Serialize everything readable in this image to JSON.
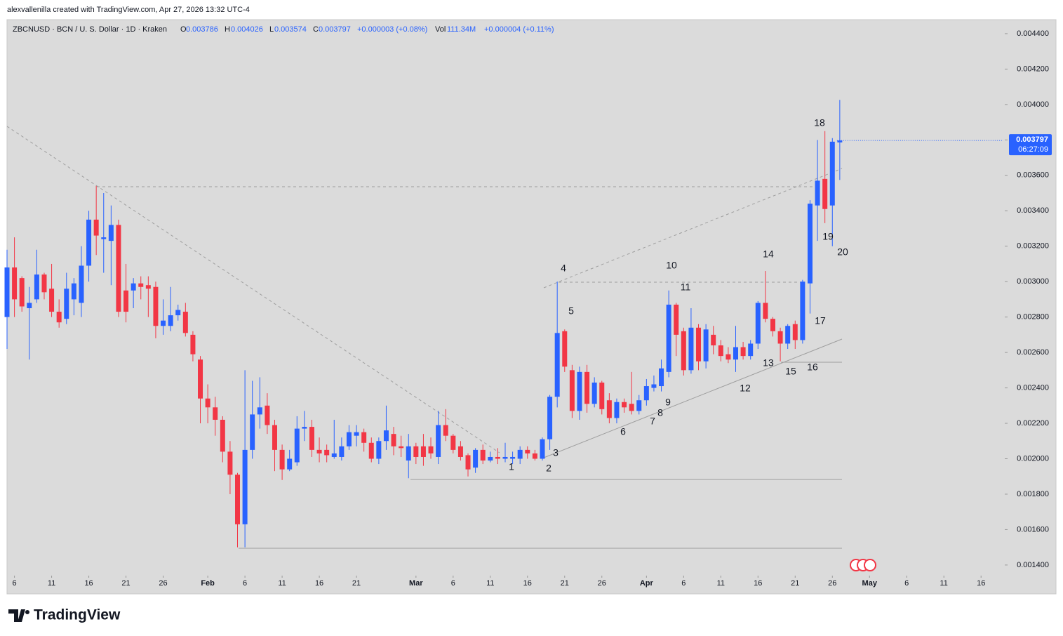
{
  "header": {
    "attribution": "alexvallenilla created with TradingView.com, Apr 27, 2026 13:32 UTC-4"
  },
  "legend": {
    "symbol": "ZBCNUSD · BCN / U. S. Dollar · 1D · Kraken",
    "open_key": "O",
    "high_key": "H",
    "low_key": "L",
    "close_key": "C",
    "change": "+0.000003 (+0.08%)",
    "volume_key": "Vol",
    "volume": "111.34M",
    "volume_change": "+0.000004 (+0.11%)"
  },
  "price_tag": {
    "countdown": "06:27:09"
  },
  "footer": {
    "brand": "TradingView"
  },
  "chart_data": {
    "type": "candlestick",
    "up_color": "#2962ff",
    "down_color": "#f23645",
    "x": [
      "2026-01-05",
      "2026-01-06",
      "2026-01-07",
      "2026-01-08",
      "2026-01-09",
      "2026-01-10",
      "2026-01-11",
      "2026-01-12",
      "2026-01-13",
      "2026-01-14",
      "2026-01-15",
      "2026-01-16",
      "2026-01-17",
      "2026-01-18",
      "2026-01-19",
      "2026-01-20",
      "2026-01-21",
      "2026-01-22",
      "2026-01-23",
      "2026-01-24",
      "2026-01-25",
      "2026-01-26",
      "2026-01-27",
      "2026-01-28",
      "2026-01-29",
      "2026-01-30",
      "2026-01-31",
      "2026-02-01",
      "2026-02-02",
      "2026-02-03",
      "2026-02-04",
      "2026-02-05",
      "2026-02-06",
      "2026-02-07",
      "2026-02-08",
      "2026-02-09",
      "2026-02-10",
      "2026-02-11",
      "2026-02-12",
      "2026-02-13",
      "2026-02-14",
      "2026-02-15",
      "2026-02-16",
      "2026-02-17",
      "2026-02-18",
      "2026-02-19",
      "2026-02-20",
      "2026-02-21",
      "2026-02-22",
      "2026-02-23",
      "2026-02-24",
      "2026-02-25",
      "2026-02-26",
      "2026-02-27",
      "2026-02-28",
      "2026-03-01",
      "2026-03-02",
      "2026-03-03",
      "2026-03-04",
      "2026-03-05",
      "2026-03-06",
      "2026-03-07",
      "2026-03-08",
      "2026-03-09",
      "2026-03-10",
      "2026-03-11",
      "2026-03-12",
      "2026-03-13",
      "2026-03-14",
      "2026-03-15",
      "2026-03-16",
      "2026-03-17",
      "2026-03-18",
      "2026-03-19",
      "2026-03-20",
      "2026-03-21",
      "2026-03-22",
      "2026-03-23",
      "2026-03-24",
      "2026-03-25",
      "2026-03-26",
      "2026-03-27",
      "2026-03-28",
      "2026-03-29",
      "2026-03-30",
      "2026-03-31",
      "2026-04-01",
      "2026-04-02",
      "2026-04-03",
      "2026-04-04",
      "2026-04-05",
      "2026-04-06",
      "2026-04-07",
      "2026-04-08",
      "2026-04-09",
      "2026-04-10",
      "2026-04-11",
      "2026-04-12",
      "2026-04-13",
      "2026-04-14",
      "2026-04-15",
      "2026-04-16",
      "2026-04-17",
      "2026-04-18",
      "2026-04-19",
      "2026-04-20",
      "2026-04-21",
      "2026-04-22",
      "2026-04-23",
      "2026-04-24",
      "2026-04-25",
      "2026-04-26",
      "2026-04-27"
    ],
    "open": [
      0.0028,
      0.00308,
      0.00302,
      0.00285,
      0.0029,
      0.00304,
      0.00296,
      0.00283,
      0.00279,
      0.0029,
      0.00288,
      0.00309,
      0.00335,
      0.00324,
      0.00323,
      0.00332,
      0.00295,
      0.00295,
      0.00299,
      0.00298,
      0.00297,
      0.00275,
      0.00275,
      0.00281,
      0.00283,
      0.0027,
      0.00256,
      0.00234,
      0.00229,
      0.00222,
      0.00204,
      0.00191,
      0.00163,
      0.00205,
      0.00225,
      0.0023,
      0.00219,
      0.00205,
      0.00194,
      0.00198,
      0.00217,
      0.00218,
      0.00205,
      0.00205,
      0.00201,
      0.00201,
      0.00207,
      0.00213,
      0.00215,
      0.00209,
      0.002,
      0.0021,
      0.00214,
      0.00207,
      0.00199,
      0.00207,
      0.00207,
      0.00207,
      0.00201,
      0.00219,
      0.00213,
      0.00207,
      0.00202,
      0.00195,
      0.00205,
      0.00199,
      0.00201,
      0.002,
      0.002,
      0.002,
      0.00205,
      0.00203,
      0.002,
      0.00211,
      0.00235,
      0.00272,
      0.0025,
      0.00227,
      0.00249,
      0.00231,
      0.00243,
      0.00233,
      0.00223,
      0.00232,
      0.00231,
      0.00227,
      0.00233,
      0.0024,
      0.00241,
      0.00249,
      0.00287,
      0.00272,
      0.0025,
      0.00274,
      0.00255,
      0.0027,
      0.00264,
      0.00259,
      0.00256,
      0.00263,
      0.00258,
      0.00265,
      0.00288,
      0.00279,
      0.00272,
      0.00265,
      0.00276,
      0.00267,
      0.00299,
      0.00343,
      0.00358,
      0.00343,
      0.003786
    ],
    "high": [
      0.00318,
      0.00325,
      0.00303,
      0.00297,
      0.00318,
      0.00305,
      0.0031,
      0.0029,
      0.00305,
      0.00302,
      0.0032,
      0.0034,
      0.00354,
      0.0035,
      0.00343,
      0.00335,
      0.0031,
      0.00302,
      0.00303,
      0.00303,
      0.003,
      0.0029,
      0.00297,
      0.00287,
      0.00288,
      0.00272,
      0.00258,
      0.00242,
      0.00235,
      0.00224,
      0.0021,
      0.00192,
      0.0025,
      0.00244,
      0.00246,
      0.00237,
      0.00222,
      0.00208,
      0.00205,
      0.00224,
      0.00227,
      0.00222,
      0.00212,
      0.00208,
      0.00222,
      0.00212,
      0.00219,
      0.00219,
      0.00217,
      0.00212,
      0.00212,
      0.0023,
      0.00218,
      0.00213,
      0.00214,
      0.00209,
      0.00214,
      0.00212,
      0.00227,
      0.00228,
      0.00214,
      0.0021,
      0.00203,
      0.00206,
      0.00208,
      0.00204,
      0.00206,
      0.00209,
      0.00204,
      0.00207,
      0.00207,
      0.00205,
      0.00212,
      0.00236,
      0.003,
      0.00273,
      0.00253,
      0.00252,
      0.00253,
      0.00246,
      0.00244,
      0.00237,
      0.00234,
      0.00234,
      0.00249,
      0.00236,
      0.00245,
      0.00247,
      0.00256,
      0.00295,
      0.00288,
      0.00274,
      0.00285,
      0.00276,
      0.00276,
      0.00275,
      0.00267,
      0.00263,
      0.00275,
      0.00266,
      0.00267,
      0.00289,
      0.00306,
      0.0028,
      0.00274,
      0.00276,
      0.00278,
      0.00301,
      0.00346,
      0.0038,
      0.00385,
      0.00381,
      0.004026
    ],
    "low": [
      0.00262,
      0.0028,
      0.00283,
      0.00256,
      0.00288,
      0.0029,
      0.0028,
      0.00274,
      0.00276,
      0.00281,
      0.0028,
      0.003,
      0.00315,
      0.00305,
      0.00298,
      0.0028,
      0.00277,
      0.00285,
      0.0029,
      0.0028,
      0.00268,
      0.0027,
      0.00272,
      0.00278,
      0.00269,
      0.00255,
      0.0022,
      0.0022,
      0.00213,
      0.00198,
      0.0018,
      0.0015,
      0.0015,
      0.002,
      0.00217,
      0.00214,
      0.00193,
      0.00188,
      0.00193,
      0.00196,
      0.0021,
      0.00201,
      0.00198,
      0.00198,
      0.002,
      0.00199,
      0.00205,
      0.00207,
      0.00204,
      0.00198,
      0.00197,
      0.00205,
      0.00202,
      0.00201,
      0.00189,
      0.00197,
      0.00196,
      0.002,
      0.00197,
      0.0021,
      0.00203,
      0.00199,
      0.0019,
      0.00192,
      0.00197,
      0.00198,
      0.00197,
      0.00198,
      0.00197,
      0.00197,
      0.002,
      0.00199,
      0.00199,
      0.00205,
      0.00229,
      0.00249,
      0.00223,
      0.00222,
      0.00226,
      0.00229,
      0.00225,
      0.0022,
      0.0022,
      0.00226,
      0.00225,
      0.00225,
      0.0023,
      0.00238,
      0.00238,
      0.00246,
      0.00258,
      0.00247,
      0.00248,
      0.0025,
      0.00251,
      0.00259,
      0.00255,
      0.00254,
      0.00249,
      0.00256,
      0.00256,
      0.00262,
      0.00277,
      0.00269,
      0.00255,
      0.00262,
      0.00262,
      0.00265,
      0.00282,
      0.00323,
      0.00333,
      0.0032,
      0.003574
    ],
    "close": [
      0.00308,
      0.0029,
      0.00286,
      0.00288,
      0.00304,
      0.00294,
      0.00283,
      0.00277,
      0.00296,
      0.00299,
      0.00309,
      0.00335,
      0.00326,
      0.00325,
      0.00332,
      0.00283,
      0.00283,
      0.00299,
      0.00297,
      0.00296,
      0.00275,
      0.00278,
      0.00281,
      0.00284,
      0.00271,
      0.00259,
      0.00234,
      0.00229,
      0.00222,
      0.00204,
      0.00191,
      0.00163,
      0.00205,
      0.00225,
      0.00229,
      0.00219,
      0.00205,
      0.00194,
      0.002,
      0.00217,
      0.00218,
      0.00205,
      0.00203,
      0.00202,
      0.00203,
      0.00207,
      0.00215,
      0.00215,
      0.00209,
      0.002,
      0.0021,
      0.00216,
      0.00207,
      0.00206,
      0.00207,
      0.00201,
      0.00201,
      0.00203,
      0.00219,
      0.00213,
      0.00205,
      0.00201,
      0.00194,
      0.00205,
      0.00199,
      0.00201,
      0.002,
      0.00201,
      0.00201,
      0.00205,
      0.00203,
      0.002,
      0.00211,
      0.00235,
      0.00271,
      0.00252,
      0.00227,
      0.00249,
      0.00231,
      0.00243,
      0.00228,
      0.00223,
      0.00232,
      0.00229,
      0.00227,
      0.00233,
      0.00241,
      0.00242,
      0.00251,
      0.00287,
      0.0027,
      0.0025,
      0.00274,
      0.00255,
      0.00273,
      0.00264,
      0.00258,
      0.00256,
      0.00263,
      0.00258,
      0.00265,
      0.00288,
      0.00279,
      0.00272,
      0.00265,
      0.00275,
      0.00267,
      0.003,
      0.00344,
      0.00357,
      0.00341,
      0.00379,
      0.003797
    ],
    "ylim": [
      0.001348,
      0.004479
    ],
    "yticks": [
      {
        "value": 0.0014,
        "label": "0.001400"
      },
      {
        "value": 0.0016,
        "label": "0.001600"
      },
      {
        "value": 0.0018,
        "label": "0.001800"
      },
      {
        "value": 0.002,
        "label": "0.002000"
      },
      {
        "value": 0.0022,
        "label": "0.002200"
      },
      {
        "value": 0.0024,
        "label": "0.002400"
      },
      {
        "value": 0.0026,
        "label": "0.002600"
      },
      {
        "value": 0.0028,
        "label": "0.002800"
      },
      {
        "value": 0.003,
        "label": "0.003000"
      },
      {
        "value": 0.0032,
        "label": "0.003200"
      },
      {
        "value": 0.0034,
        "label": "0.003400"
      },
      {
        "value": 0.0036,
        "label": "0.003600"
      },
      {
        "value": 0.0038,
        "label": "0.003800"
      },
      {
        "value": 0.004,
        "label": "0.004000"
      },
      {
        "value": 0.0042,
        "label": "0.004200"
      },
      {
        "value": 0.0044,
        "label": "0.004400"
      }
    ],
    "xlim": [
      "2026-01-05",
      "2026-05-19"
    ],
    "xticks": [
      {
        "value": "2026-01-06",
        "label": "6"
      },
      {
        "value": "2026-01-11",
        "label": "11"
      },
      {
        "value": "2026-01-16",
        "label": "16"
      },
      {
        "value": "2026-01-21",
        "label": "21"
      },
      {
        "value": "2026-01-26",
        "label": "26"
      },
      {
        "value": "2026-02-01",
        "label": "Feb"
      },
      {
        "value": "2026-02-06",
        "label": "6"
      },
      {
        "value": "2026-02-11",
        "label": "11"
      },
      {
        "value": "2026-02-16",
        "label": "16"
      },
      {
        "value": "2026-02-21",
        "label": "21"
      },
      {
        "value": "2026-03-01",
        "label": "Mar"
      },
      {
        "value": "2026-03-06",
        "label": "6"
      },
      {
        "value": "2026-03-11",
        "label": "11"
      },
      {
        "value": "2026-03-16",
        "label": "16"
      },
      {
        "value": "2026-03-21",
        "label": "21"
      },
      {
        "value": "2026-03-26",
        "label": "26"
      },
      {
        "value": "2026-04-01",
        "label": "Apr"
      },
      {
        "value": "2026-04-06",
        "label": "6"
      },
      {
        "value": "2026-04-11",
        "label": "11"
      },
      {
        "value": "2026-04-16",
        "label": "16"
      },
      {
        "value": "2026-04-21",
        "label": "21"
      },
      {
        "value": "2026-04-26",
        "label": "26"
      },
      {
        "value": "2026-05-01",
        "label": "May"
      },
      {
        "value": "2026-05-06",
        "label": "6"
      },
      {
        "value": "2026-05-11",
        "label": "11"
      },
      {
        "value": "2026-05-16",
        "label": "16"
      }
    ],
    "annotations": [
      "1",
      "2",
      "3",
      "4",
      "5",
      "6",
      "7",
      "8",
      "9",
      "10",
      "11",
      "12",
      "13",
      "14",
      "15",
      "16",
      "17",
      "18",
      "19",
      "20"
    ]
  }
}
